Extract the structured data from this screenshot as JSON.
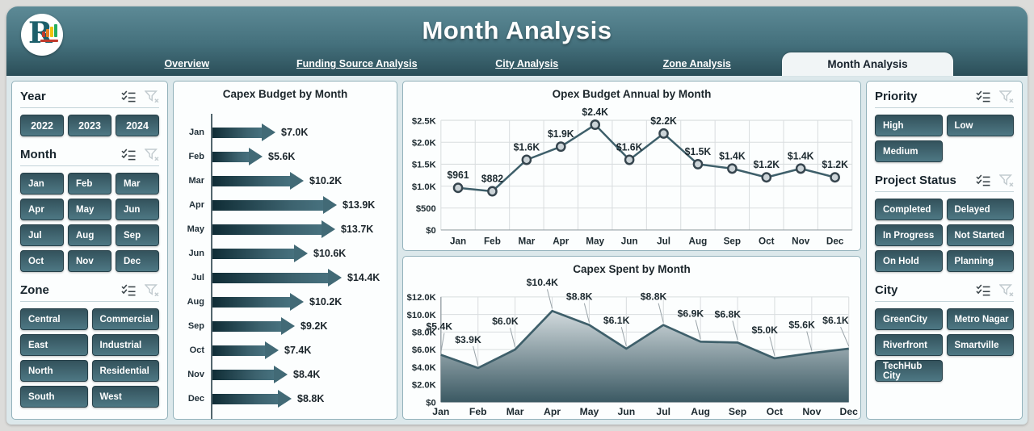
{
  "header": {
    "title": "Month Analysis",
    "tabs": [
      "Overview",
      "Funding Source Analysis",
      "City Analysis",
      "Zone Analysis"
    ],
    "active_tab": "Month Analysis"
  },
  "filters": {
    "year": {
      "label": "Year",
      "options": [
        "2022",
        "2023",
        "2024"
      ]
    },
    "month": {
      "label": "Month",
      "options": [
        "Jan",
        "Feb",
        "Mar",
        "Apr",
        "May",
        "Jun",
        "Jul",
        "Aug",
        "Sep",
        "Oct",
        "Nov",
        "Dec"
      ]
    },
    "zone": {
      "label": "Zone",
      "options": [
        "Central",
        "Commercial",
        "East",
        "Industrial",
        "North",
        "Residential",
        "South",
        "West"
      ]
    },
    "priority": {
      "label": "Priority",
      "options": [
        "High",
        "Low",
        "Medium"
      ]
    },
    "project_status": {
      "label": "Project Status",
      "options": [
        "Completed",
        "Delayed",
        "In Progress",
        "Not Started",
        "On Hold",
        "Planning"
      ]
    },
    "city": {
      "label": "City",
      "options": [
        "GreenCity",
        "Metro Nagar",
        "Riverfront",
        "Smartville",
        "TechHub City"
      ]
    }
  },
  "chart_data": [
    {
      "type": "bar",
      "title": "Capex Budget by Month",
      "orientation": "horizontal",
      "categories": [
        "Jan",
        "Feb",
        "Mar",
        "Apr",
        "May",
        "Jun",
        "Jul",
        "Aug",
        "Sep",
        "Oct",
        "Nov",
        "Dec"
      ],
      "values": [
        7000,
        5600,
        10200,
        13900,
        13700,
        10600,
        14400,
        10200,
        9200,
        7400,
        8400,
        8800
      ],
      "labels": [
        "$7.0K",
        "$5.6K",
        "$10.2K",
        "$13.9K",
        "$13.7K",
        "$10.6K",
        "$14.4K",
        "$10.2K",
        "$9.2K",
        "$7.4K",
        "$8.4K",
        "$8.8K"
      ],
      "xlim": [
        0,
        14400
      ]
    },
    {
      "type": "line",
      "title": "Opex Budget Annual by Month",
      "categories": [
        "Jan",
        "Feb",
        "Mar",
        "Apr",
        "May",
        "Jun",
        "Jul",
        "Aug",
        "Sep",
        "Oct",
        "Nov",
        "Dec"
      ],
      "values": [
        961,
        882,
        1600,
        1900,
        2400,
        1600,
        2200,
        1500,
        1400,
        1200,
        1400,
        1200
      ],
      "labels": [
        "$961",
        "$882",
        "$1.6K",
        "$1.9K",
        "$2.4K",
        "$1.6K",
        "$2.2K",
        "$1.5K",
        "$1.4K",
        "$1.2K",
        "$1.4K",
        "$1.2K"
      ],
      "ylim": [
        0,
        2500
      ],
      "ytick_values": [
        0,
        500,
        1000,
        1500,
        2000,
        2500
      ],
      "ytick_labels": [
        "$0",
        "$500",
        "$1.0K",
        "$1.5K",
        "$2.0K",
        "$2.5K"
      ],
      "grid": true,
      "legend": "none"
    },
    {
      "type": "area",
      "title": "Capex Spent by Month",
      "categories": [
        "Jan",
        "Feb",
        "Mar",
        "Apr",
        "May",
        "Jun",
        "Jul",
        "Aug",
        "Sep",
        "Oct",
        "Nov",
        "Dec"
      ],
      "values": [
        5400,
        3900,
        6000,
        10400,
        8800,
        6100,
        8800,
        6900,
        6800,
        5000,
        5600,
        6100
      ],
      "labels": [
        "$5.4K",
        "$3.9K",
        "$6.0K",
        "$10.4K",
        "$8.8K",
        "$6.1K",
        "$8.8K",
        "$6.9K",
        "$6.8K",
        "$5.0K",
        "$5.6K",
        "$6.1K"
      ],
      "ylim": [
        0,
        12000
      ],
      "ytick_values": [
        0,
        2000,
        4000,
        6000,
        8000,
        10000,
        12000
      ],
      "ytick_labels": [
        "$0",
        "$2.0K",
        "$4.0K",
        "$6.0K",
        "$8.0K",
        "$10.0K",
        "$12.0K"
      ],
      "grid": true,
      "legend": "none"
    }
  ],
  "colors": {
    "line": "#3e5f6a",
    "marker_fill": "#ccd4d8",
    "marker_stroke": "#36454e",
    "grid": "#d9dddf",
    "axis": "#9aa4a9",
    "ink": "#1d2a30",
    "area_top": "#e9eef0",
    "area_bottom": "#3b5963",
    "leader": "#9aa4a9"
  },
  "icons": {
    "multiselect": "multi-select",
    "clear_filter": "clear-filter"
  }
}
